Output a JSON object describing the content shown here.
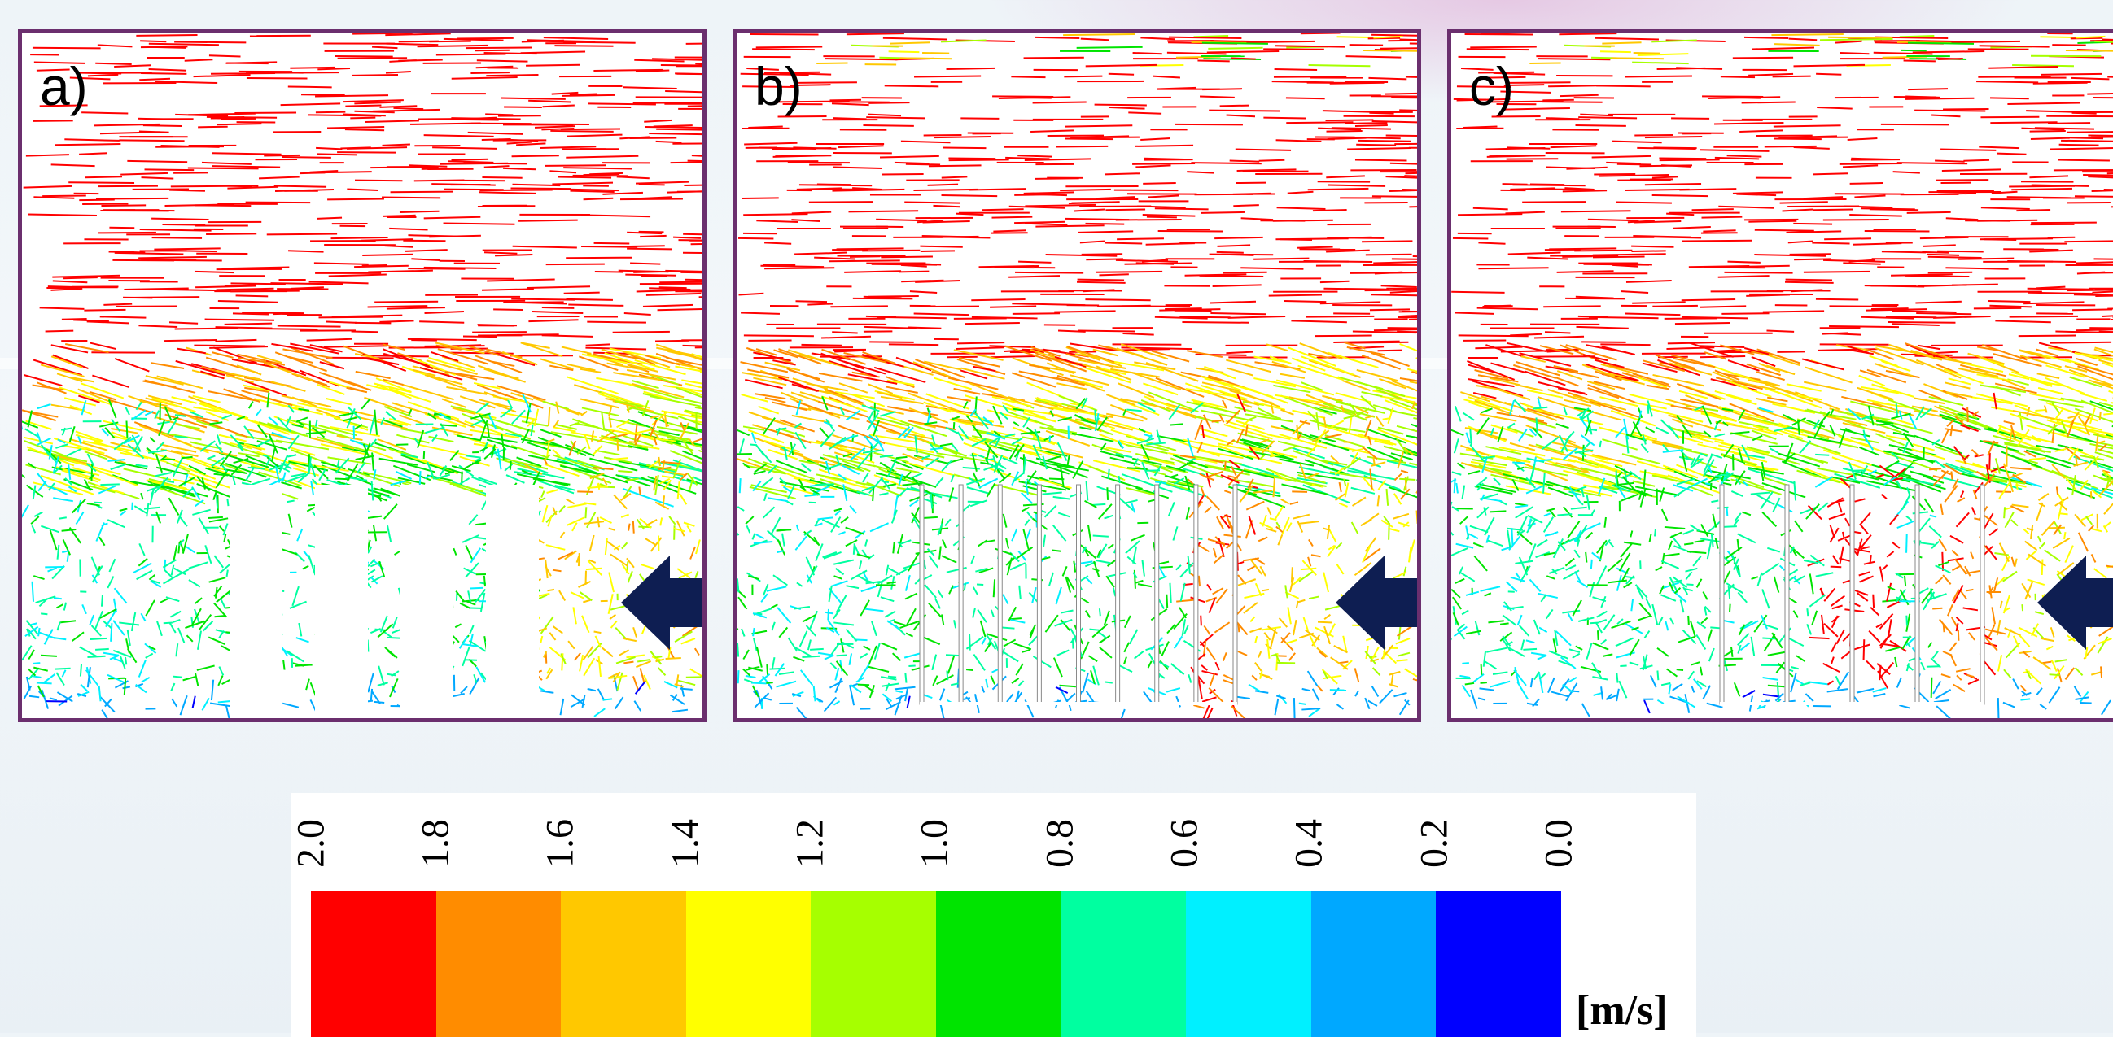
{
  "panels": [
    {
      "id": "a",
      "label": "a)",
      "obstacle": "solid-blocks",
      "block_count": 4
    },
    {
      "id": "b",
      "label": "b)",
      "obstacle": "thin-plates",
      "plate_count": 9
    },
    {
      "id": "c",
      "label": "c)",
      "obstacle": "thin-plates",
      "plate_count": 5
    }
  ],
  "flow_direction": "right-to-left",
  "arrow_icon": "arrow-left-icon",
  "colors": {
    "panel_border": "#6b2f6e",
    "arrow": "#0e1e52",
    "obstacle": "#ffffff"
  },
  "legend": {
    "ticks": [
      "2.0",
      "1.8",
      "1.6",
      "1.4",
      "1.2",
      "1.0",
      "0.8",
      "0.6",
      "0.4",
      "0.2",
      "0.0"
    ],
    "colors": [
      "#ff0000",
      "#ff8c00",
      "#ffc800",
      "#ffff00",
      "#a6ff00",
      "#00e400",
      "#00ffa0",
      "#00f0ff",
      "#00a8ff",
      "#0000ff"
    ],
    "unit": "[m/s]"
  }
}
